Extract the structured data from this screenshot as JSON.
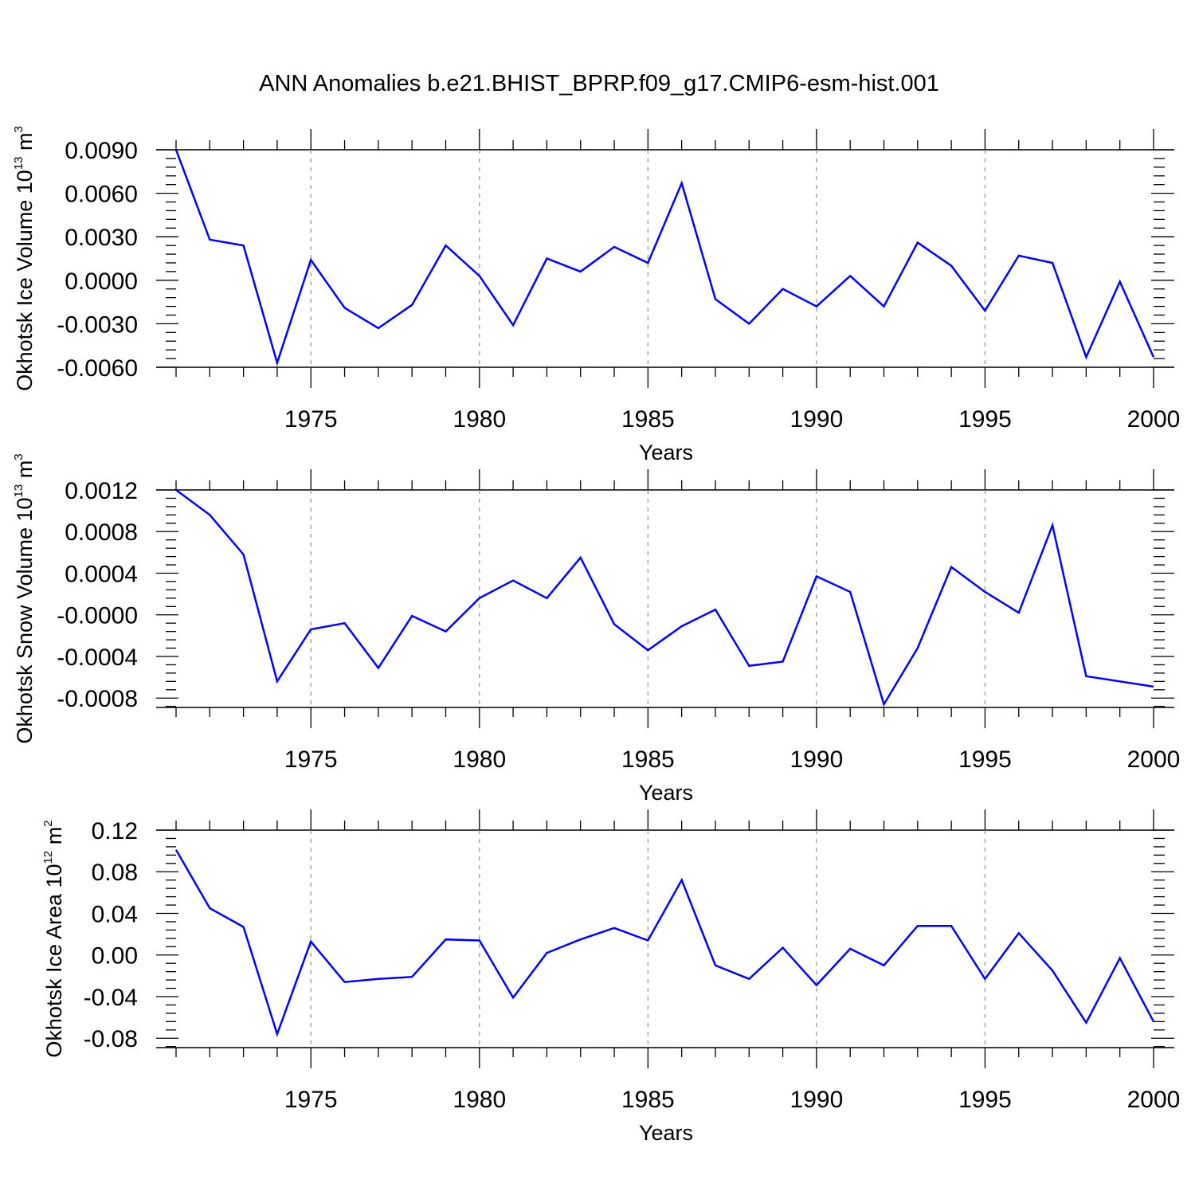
{
  "title": "ANN Anomalies b.e21.BHIST_BPRP.f09_g17.CMIP6-esm-hist.001",
  "line_color": "#0000ff",
  "chart_data": [
    {
      "type": "line",
      "ylabel": "Okhotsk Ice Volume 10",
      "ylabel_exponent": "13",
      "ylabel_unit": "m",
      "ylabel_unit_exponent": "3",
      "xlabel": "Years",
      "xlim": [
        1971,
        2000
      ],
      "ylim": [
        -0.006,
        0.009
      ],
      "x_ticks": [
        1975,
        1980,
        1985,
        1990,
        1995,
        2000
      ],
      "x_tick_labels": [
        "1975",
        "1980",
        "1985",
        "1990",
        "1995",
        "2000"
      ],
      "y_ticks": [
        0.009,
        0.006,
        0.003,
        0.0,
        -0.003,
        -0.006
      ],
      "y_tick_labels": [
        "0.0090",
        "0.0060",
        "0.0030",
        "0.0000",
        "-0.0030",
        "-0.0060"
      ],
      "grid": "vertical dashed at major x ticks",
      "series": [
        {
          "name": "Okhotsk Ice Volume",
          "x": [
            1971,
            1972,
            1973,
            1974,
            1975,
            1976,
            1977,
            1978,
            1979,
            1980,
            1981,
            1982,
            1983,
            1984,
            1985,
            1986,
            1987,
            1988,
            1989,
            1990,
            1991,
            1992,
            1993,
            1994,
            1995,
            1996,
            1997,
            1998,
            1999,
            2000
          ],
          "values": [
            0.009,
            0.0028,
            0.0024,
            -0.0057,
            0.0014,
            -0.0019,
            -0.0033,
            -0.0017,
            0.0024,
            0.0003,
            -0.0031,
            0.0015,
            0.0006,
            0.0023,
            0.0012,
            0.0067,
            -0.0013,
            -0.003,
            -0.0006,
            -0.0018,
            0.0003,
            -0.0018,
            0.0026,
            0.001,
            -0.0021,
            0.0017,
            0.0012,
            -0.0053,
            -0.0001,
            -0.0053
          ]
        }
      ]
    },
    {
      "type": "line",
      "ylabel": "Okhotsk Snow Volume 10",
      "ylabel_exponent": "13",
      "ylabel_unit": "m",
      "ylabel_unit_exponent": "3",
      "xlabel": "Years",
      "xlim": [
        1971,
        2000
      ],
      "ylim": [
        -0.00089,
        0.0012
      ],
      "x_ticks": [
        1975,
        1980,
        1985,
        1990,
        1995,
        2000
      ],
      "x_tick_labels": [
        "1975",
        "1980",
        "1985",
        "1990",
        "1995",
        "2000"
      ],
      "y_ticks": [
        0.0012,
        0.0008,
        0.0004,
        0.0,
        -0.0004,
        -0.0008
      ],
      "y_tick_labels": [
        "0.0012",
        "0.0008",
        "0.0004",
        "-0.0000",
        "-0.0004",
        "-0.0008"
      ],
      "grid": "vertical dashed at major x ticks",
      "series": [
        {
          "name": "Okhotsk Snow Volume",
          "x": [
            1971,
            1972,
            1973,
            1974,
            1975,
            1976,
            1977,
            1978,
            1979,
            1980,
            1981,
            1982,
            1983,
            1984,
            1985,
            1986,
            1987,
            1988,
            1989,
            1990,
            1991,
            1992,
            1993,
            1994,
            1995,
            1996,
            1997,
            1998,
            1999,
            2000
          ],
          "values": [
            0.0012,
            0.00096,
            0.00058,
            -0.00064,
            -0.00014,
            -8e-05,
            -0.00051,
            -1e-05,
            -0.00016,
            0.00016,
            0.00033,
            0.00016,
            0.00055,
            -9e-05,
            -0.00034,
            -0.00011,
            5e-05,
            -0.00049,
            -0.00045,
            0.00037,
            0.00022,
            -0.00086,
            -0.00032,
            0.00046,
            0.00022,
            2e-05,
            0.00086,
            -0.00059,
            -0.00064,
            -0.00069
          ]
        }
      ]
    },
    {
      "type": "line",
      "ylabel": "Okhotsk Ice Area 10",
      "ylabel_exponent": "12",
      "ylabel_unit": "m",
      "ylabel_unit_exponent": "2",
      "xlabel": "Years",
      "xlim": [
        1971,
        2000
      ],
      "ylim": [
        -0.089,
        0.12
      ],
      "x_ticks": [
        1975,
        1980,
        1985,
        1990,
        1995,
        2000
      ],
      "x_tick_labels": [
        "1975",
        "1980",
        "1985",
        "1990",
        "1995",
        "2000"
      ],
      "y_ticks": [
        0.12,
        0.08,
        0.04,
        0.0,
        -0.04,
        -0.08
      ],
      "y_tick_labels": [
        "0.12",
        "0.08",
        "0.04",
        "0.00",
        "-0.04",
        "-0.08"
      ],
      "grid": "vertical dashed at major x ticks",
      "series": [
        {
          "name": "Okhotsk Ice Area",
          "x": [
            1971,
            1972,
            1973,
            1974,
            1975,
            1976,
            1977,
            1978,
            1979,
            1980,
            1981,
            1982,
            1983,
            1984,
            1985,
            1986,
            1987,
            1988,
            1989,
            1990,
            1991,
            1992,
            1993,
            1994,
            1995,
            1996,
            1997,
            1998,
            1999,
            2000
          ],
          "values": [
            0.101,
            0.045,
            0.027,
            -0.076,
            0.013,
            -0.026,
            -0.023,
            -0.021,
            0.015,
            0.014,
            -0.041,
            0.002,
            0.015,
            0.026,
            0.014,
            0.072,
            -0.01,
            -0.023,
            0.007,
            -0.029,
            0.006,
            -0.01,
            0.028,
            0.028,
            -0.023,
            0.021,
            -0.015,
            -0.065,
            -0.003,
            -0.064
          ]
        }
      ]
    }
  ]
}
